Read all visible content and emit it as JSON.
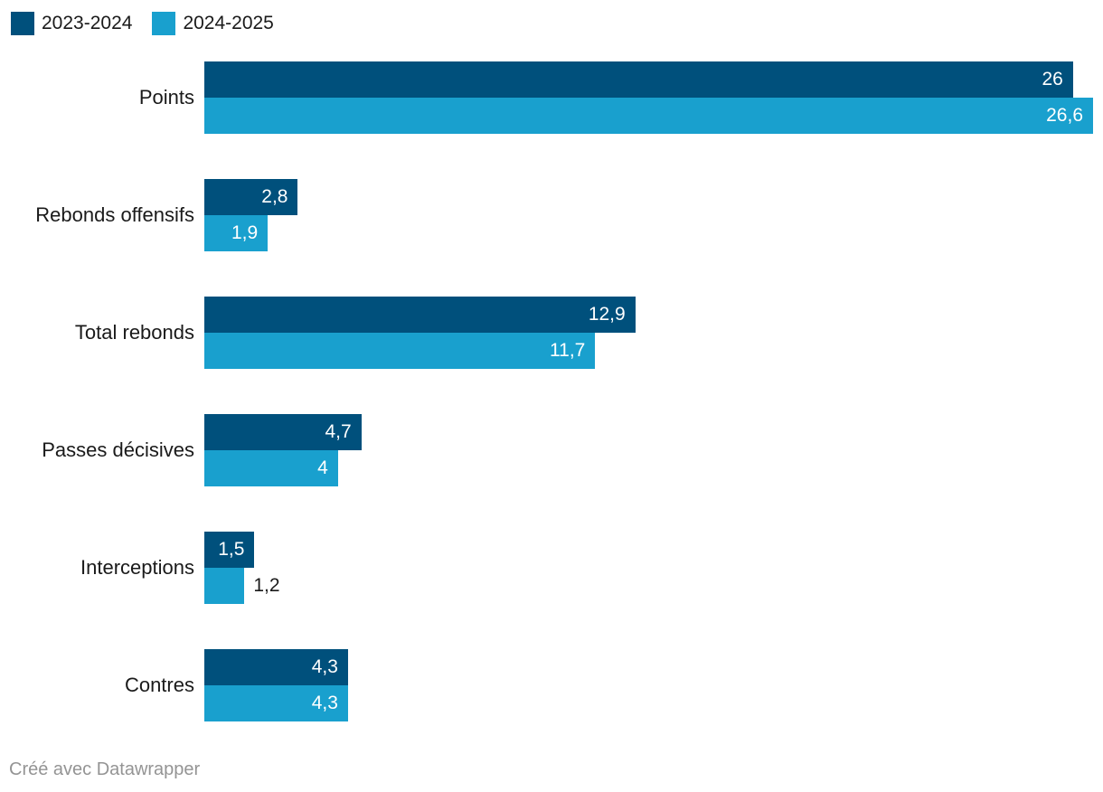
{
  "chart_data": {
    "type": "bar",
    "orientation": "horizontal",
    "title": "",
    "categories": [
      "Points",
      "Rebonds offensifs",
      "Total rebonds",
      "Passes décisives",
      "Interceptions",
      "Contres"
    ],
    "series": [
      {
        "name": "2023-2024",
        "color": "#00507c",
        "values": [
          26,
          2.8,
          12.9,
          4.7,
          1.5,
          4.3
        ],
        "value_labels": [
          "26",
          "2,8",
          "12,9",
          "4,7",
          "1,5",
          "4,3"
        ]
      },
      {
        "name": "2024-2025",
        "color": "#19a0ce",
        "values": [
          26.6,
          1.9,
          11.7,
          4,
          1.2,
          4.3
        ],
        "value_labels": [
          "26,6",
          "1,9",
          "11,7",
          "4",
          "1,2",
          "4,3"
        ]
      }
    ],
    "xmax": 26.6,
    "xlabel": "",
    "ylabel": "",
    "grid": false,
    "legend_position": "top-left",
    "value_label_inside_color": "#ffffff",
    "value_label_outside_color": "#1a1a1a"
  },
  "footer": {
    "credit": "Créé avec Datawrapper"
  }
}
